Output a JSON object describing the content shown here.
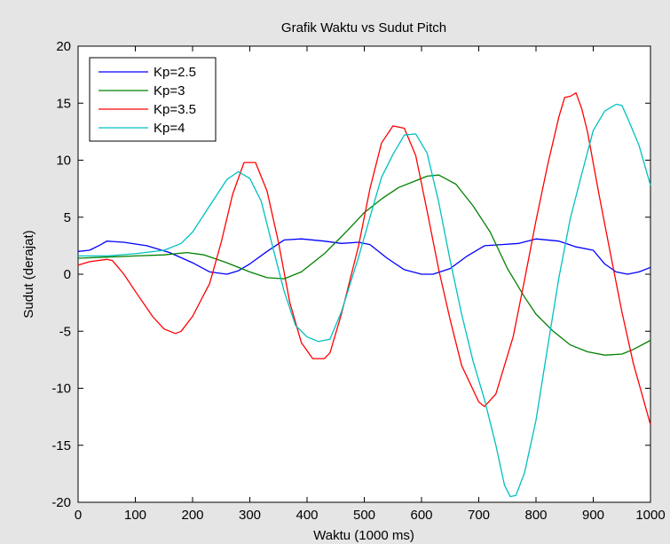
{
  "chart_data": {
    "type": "line",
    "title": "Grafik Waktu vs Sudut Pitch",
    "xlabel": "Waktu (1000 ms)",
    "ylabel": "Sudut (derajat)",
    "xlim": [
      0,
      1000
    ],
    "ylim": [
      -20,
      20
    ],
    "xticks": [
      0,
      100,
      200,
      300,
      400,
      500,
      600,
      700,
      800,
      900,
      1000
    ],
    "yticks": [
      -20,
      -15,
      -10,
      -5,
      0,
      5,
      10,
      15,
      20
    ],
    "grid": false,
    "legend_position": "top-left",
    "series": [
      {
        "name": "Kp=2.5",
        "color": "#0000ff",
        "points": [
          [
            0,
            2.0
          ],
          [
            20,
            2.1
          ],
          [
            40,
            2.6
          ],
          [
            50,
            2.9
          ],
          [
            80,
            2.8
          ],
          [
            120,
            2.5
          ],
          [
            160,
            1.9
          ],
          [
            200,
            1.0
          ],
          [
            230,
            0.2
          ],
          [
            260,
            0.0
          ],
          [
            280,
            0.3
          ],
          [
            300,
            0.9
          ],
          [
            330,
            2.0
          ],
          [
            360,
            3.0
          ],
          [
            390,
            3.1
          ],
          [
            430,
            2.9
          ],
          [
            460,
            2.7
          ],
          [
            490,
            2.8
          ],
          [
            510,
            2.6
          ],
          [
            540,
            1.4
          ],
          [
            570,
            0.4
          ],
          [
            600,
            0.0
          ],
          [
            620,
            0.0
          ],
          [
            650,
            0.5
          ],
          [
            680,
            1.6
          ],
          [
            710,
            2.5
          ],
          [
            740,
            2.6
          ],
          [
            770,
            2.7
          ],
          [
            800,
            3.1
          ],
          [
            840,
            2.9
          ],
          [
            870,
            2.4
          ],
          [
            900,
            2.1
          ],
          [
            920,
            0.9
          ],
          [
            940,
            0.2
          ],
          [
            960,
            0.0
          ],
          [
            980,
            0.2
          ],
          [
            1000,
            0.6
          ]
        ]
      },
      {
        "name": "Kp=3",
        "color": "#008000",
        "points": [
          [
            0,
            1.4
          ],
          [
            50,
            1.5
          ],
          [
            100,
            1.6
          ],
          [
            150,
            1.7
          ],
          [
            190,
            1.9
          ],
          [
            220,
            1.7
          ],
          [
            260,
            1.0
          ],
          [
            300,
            0.2
          ],
          [
            330,
            -0.3
          ],
          [
            360,
            -0.4
          ],
          [
            390,
            0.2
          ],
          [
            430,
            1.8
          ],
          [
            470,
            3.8
          ],
          [
            500,
            5.4
          ],
          [
            530,
            6.6
          ],
          [
            560,
            7.6
          ],
          [
            590,
            8.2
          ],
          [
            610,
            8.6
          ],
          [
            630,
            8.7
          ],
          [
            660,
            7.9
          ],
          [
            690,
            6.0
          ],
          [
            720,
            3.7
          ],
          [
            750,
            0.5
          ],
          [
            780,
            -2.0
          ],
          [
            800,
            -3.5
          ],
          [
            830,
            -5.0
          ],
          [
            860,
            -6.2
          ],
          [
            890,
            -6.8
          ],
          [
            920,
            -7.1
          ],
          [
            950,
            -7.0
          ],
          [
            970,
            -6.6
          ],
          [
            1000,
            -5.8
          ]
        ]
      },
      {
        "name": "Kp=3.5",
        "color": "#ff0000",
        "points": [
          [
            0,
            0.8
          ],
          [
            20,
            1.1
          ],
          [
            50,
            1.3
          ],
          [
            60,
            1.2
          ],
          [
            80,
            0.0
          ],
          [
            100,
            -1.5
          ],
          [
            130,
            -3.7
          ],
          [
            150,
            -4.8
          ],
          [
            170,
            -5.2
          ],
          [
            180,
            -5.0
          ],
          [
            200,
            -3.7
          ],
          [
            230,
            -0.8
          ],
          [
            250,
            2.8
          ],
          [
            270,
            7.0
          ],
          [
            290,
            9.8
          ],
          [
            310,
            9.8
          ],
          [
            330,
            7.3
          ],
          [
            350,
            2.8
          ],
          [
            370,
            -2.5
          ],
          [
            390,
            -6.0
          ],
          [
            410,
            -7.4
          ],
          [
            430,
            -7.4
          ],
          [
            440,
            -6.9
          ],
          [
            460,
            -3.5
          ],
          [
            490,
            2.5
          ],
          [
            510,
            7.5
          ],
          [
            530,
            11.5
          ],
          [
            550,
            13.0
          ],
          [
            570,
            12.8
          ],
          [
            590,
            10.4
          ],
          [
            610,
            5.5
          ],
          [
            630,
            0.4
          ],
          [
            650,
            -4.0
          ],
          [
            670,
            -8.0
          ],
          [
            700,
            -11.2
          ],
          [
            710,
            -11.6
          ],
          [
            730,
            -10.5
          ],
          [
            760,
            -5.5
          ],
          [
            780,
            -0.5
          ],
          [
            800,
            4.7
          ],
          [
            820,
            9.5
          ],
          [
            840,
            13.8
          ],
          [
            850,
            15.5
          ],
          [
            860,
            15.6
          ],
          [
            870,
            15.9
          ],
          [
            880,
            14.5
          ],
          [
            890,
            12.5
          ],
          [
            910,
            7.0
          ],
          [
            930,
            1.8
          ],
          [
            950,
            -3.3
          ],
          [
            970,
            -7.8
          ],
          [
            1000,
            -13.2
          ]
        ]
      },
      {
        "name": "Kp=4",
        "color": "#00c0c0",
        "points": [
          [
            0,
            1.6
          ],
          [
            50,
            1.6
          ],
          [
            100,
            1.8
          ],
          [
            150,
            2.1
          ],
          [
            180,
            2.7
          ],
          [
            200,
            3.7
          ],
          [
            230,
            6.0
          ],
          [
            260,
            8.3
          ],
          [
            280,
            9.0
          ],
          [
            300,
            8.4
          ],
          [
            320,
            6.4
          ],
          [
            340,
            2.4
          ],
          [
            360,
            -1.5
          ],
          [
            380,
            -4.5
          ],
          [
            400,
            -5.5
          ],
          [
            420,
            -5.9
          ],
          [
            440,
            -5.7
          ],
          [
            460,
            -3.3
          ],
          [
            490,
            1.5
          ],
          [
            510,
            5.0
          ],
          [
            530,
            8.5
          ],
          [
            550,
            10.5
          ],
          [
            570,
            12.2
          ],
          [
            590,
            12.3
          ],
          [
            610,
            10.6
          ],
          [
            630,
            6.3
          ],
          [
            650,
            1.2
          ],
          [
            670,
            -3.5
          ],
          [
            690,
            -7.6
          ],
          [
            710,
            -11.0
          ],
          [
            730,
            -15.0
          ],
          [
            745,
            -18.5
          ],
          [
            755,
            -19.5
          ],
          [
            765,
            -19.4
          ],
          [
            780,
            -17.4
          ],
          [
            800,
            -12.8
          ],
          [
            820,
            -6.5
          ],
          [
            840,
            -0.3
          ],
          [
            860,
            4.9
          ],
          [
            880,
            8.8
          ],
          [
            900,
            12.6
          ],
          [
            920,
            14.3
          ],
          [
            940,
            14.9
          ],
          [
            950,
            14.8
          ],
          [
            960,
            13.7
          ],
          [
            980,
            11.3
          ],
          [
            1000,
            7.8
          ]
        ]
      }
    ]
  }
}
